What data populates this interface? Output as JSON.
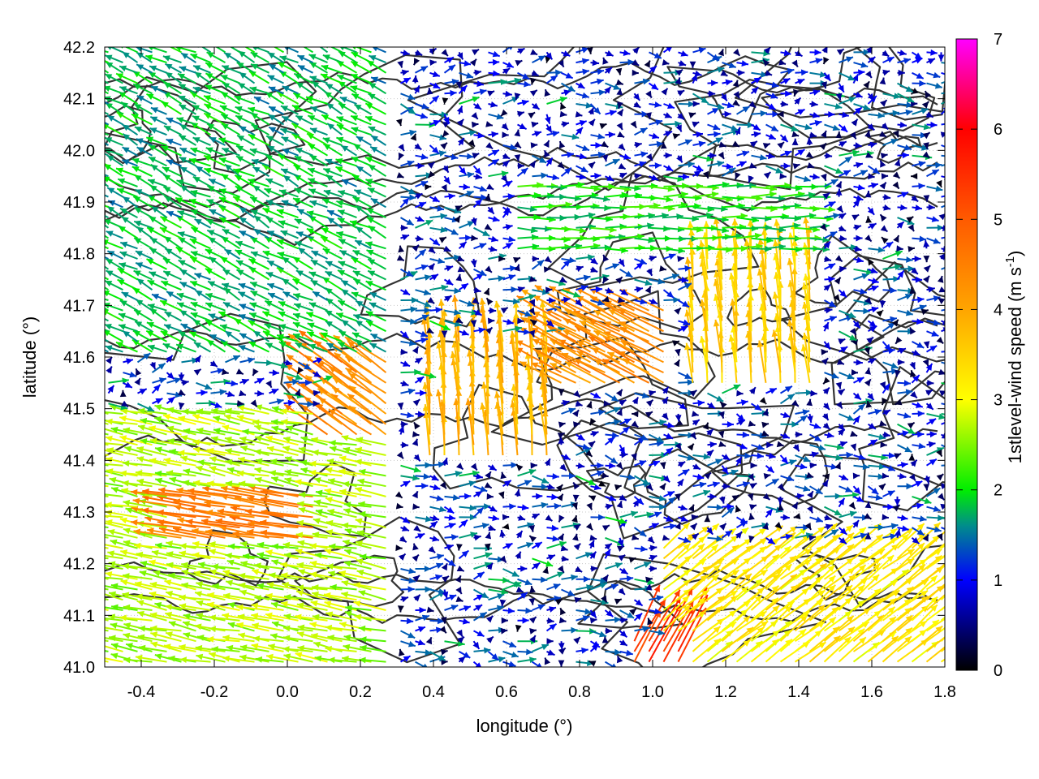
{
  "chart_data": {
    "type": "vector-field",
    "xlabel": "longitude (°)",
    "ylabel": "latitude (°)",
    "xlim": [
      -0.5,
      1.8
    ],
    "ylim": [
      41.0,
      42.2
    ],
    "x_ticks": [
      "-0.4",
      "-0.2",
      "0.0",
      "0.2",
      "0.4",
      "0.6",
      "0.8",
      "1.0",
      "1.2",
      "1.4",
      "1.6",
      "1.8"
    ],
    "x_tick_values": [
      -0.4,
      -0.2,
      0.0,
      0.2,
      0.4,
      0.6,
      0.8,
      1.0,
      1.2,
      1.4,
      1.6,
      1.8
    ],
    "y_ticks": [
      "41.0",
      "41.1",
      "41.2",
      "41.3",
      "41.4",
      "41.5",
      "41.6",
      "41.7",
      "41.8",
      "41.9",
      "42.0",
      "42.1",
      "42.2"
    ],
    "y_tick_values": [
      41.0,
      41.1,
      41.2,
      41.3,
      41.4,
      41.5,
      41.6,
      41.7,
      41.8,
      41.9,
      42.0,
      42.1,
      42.2
    ],
    "colorbar": {
      "label": "1stlevel-wind speed (m s",
      "label_sup": "-1",
      "label_end": ")",
      "range": [
        0,
        7
      ],
      "ticks": [
        "0",
        "1",
        "2",
        "3",
        "4",
        "5",
        "6",
        "7"
      ],
      "tick_values": [
        0,
        1,
        2,
        3,
        4,
        5,
        6,
        7
      ],
      "stops": [
        {
          "v": 0.0,
          "color": "#000000"
        },
        {
          "v": 1.0,
          "color": "#0000ff"
        },
        {
          "v": 1.6,
          "color": "#008c8c"
        },
        {
          "v": 2.0,
          "color": "#00ee00"
        },
        {
          "v": 3.0,
          "color": "#ffff00"
        },
        {
          "v": 4.0,
          "color": "#ffa500"
        },
        {
          "v": 5.0,
          "color": "#ff5a00"
        },
        {
          "v": 6.0,
          "color": "#ff0000"
        },
        {
          "v": 7.0,
          "color": "#ff00ff"
        }
      ]
    },
    "contour_color": "#333333",
    "grid": true,
    "wind_regions": [
      {
        "lon": [
          -0.5,
          0.3
        ],
        "lat": [
          41.0,
          41.5
        ],
        "u": -2.6,
        "v": 0.5
      },
      {
        "lon": [
          -0.3,
          0.1
        ],
        "lat": [
          41.25,
          41.35
        ],
        "u": -4.5,
        "v": 0.7
      },
      {
        "lon": [
          0.1,
          0.3
        ],
        "lat": [
          41.45,
          41.6
        ],
        "u": -3.5,
        "v": 2.5
      },
      {
        "lon": [
          0.35,
          0.75
        ],
        "lat": [
          41.4,
          41.65
        ],
        "u": -0.3,
        "v": 3.8
      },
      {
        "lon": [
          0.75,
          1.05
        ],
        "lat": [
          41.55,
          41.7
        ],
        "u": -3.8,
        "v": 2.0
      },
      {
        "lon": [
          1.1,
          1.45
        ],
        "lat": [
          41.55,
          41.85
        ],
        "u": -0.3,
        "v": 3.5
      },
      {
        "lon": [
          1.0,
          1.8
        ],
        "lat": [
          41.0,
          41.25
        ],
        "u": 2.5,
        "v": 2.0
      },
      {
        "lon": [
          0.95,
          1.1
        ],
        "lat": [
          41.0,
          41.07
        ],
        "u": 2.5,
        "v": 4.8
      },
      {
        "lon": [
          0.6,
          1.45
        ],
        "lat": [
          41.8,
          41.95
        ],
        "u": 2.0,
        "v": 0.0
      },
      {
        "lon": [
          -0.5,
          0.3
        ],
        "lat": [
          41.6,
          42.2
        ],
        "u": -1.6,
        "v": 0.8
      }
    ]
  }
}
